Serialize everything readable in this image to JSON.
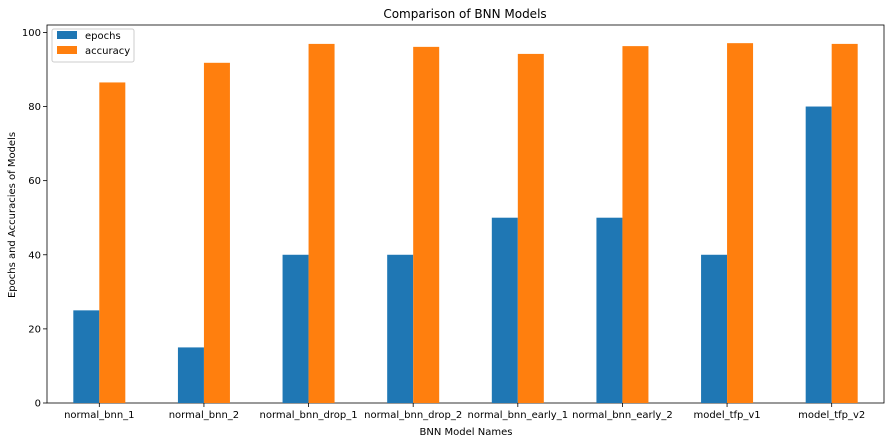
{
  "chart_data": {
    "type": "bar",
    "title": "Comparison of BNN Models",
    "xlabel": "BNN Model Names",
    "ylabel": "Epochs and Accuracies of Models",
    "categories": [
      "normal_bnn_1",
      "normal_bnn_2",
      "normal_bnn_drop_1",
      "normal_bnn_drop_2",
      "normal_bnn_early_1",
      "normal_bnn_early_2",
      "model_tfp_v1",
      "model_tfp_v2"
    ],
    "series": [
      {
        "name": "epochs",
        "color": "#1f77b4",
        "values": [
          25,
          15,
          40,
          40,
          50,
          50,
          40,
          80
        ]
      },
      {
        "name": "accuracy",
        "color": "#ff7f0e",
        "values": [
          86.5,
          91.8,
          96.9,
          96.1,
          94.2,
          96.3,
          97.1,
          96.9
        ]
      }
    ],
    "ylim": [
      0,
      102
    ],
    "yticks": [
      0,
      20,
      40,
      60,
      80,
      100
    ],
    "grid": false,
    "legend_position": "top-left"
  }
}
